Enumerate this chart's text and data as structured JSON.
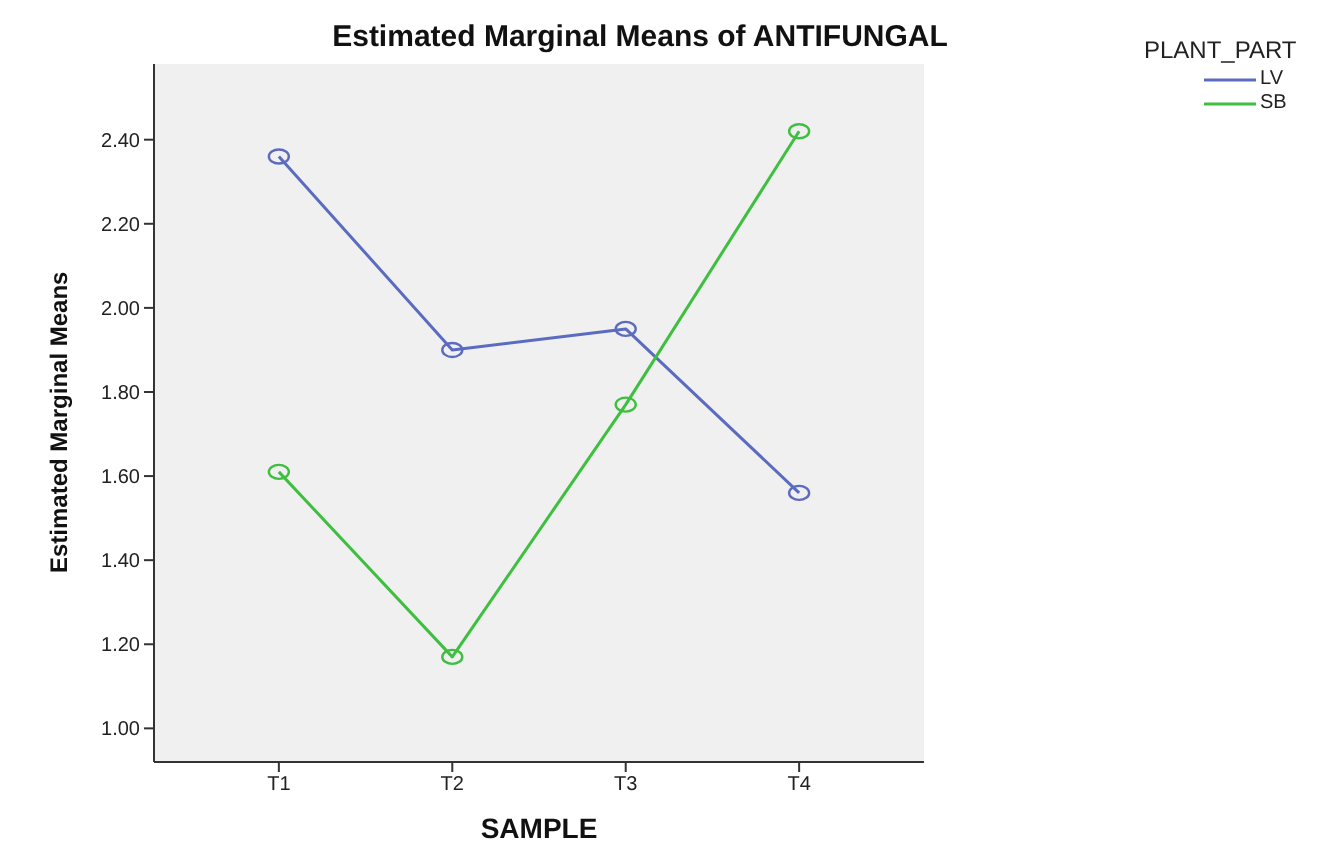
{
  "chart_data": {
    "type": "line",
    "title": "Estimated Marginal Means of ANTIFUNGAL",
    "xlabel": "SAMPLE",
    "ylabel": "Estimated Marginal Means",
    "legend_title": "PLANT_PART",
    "categories": [
      "T1",
      "T2",
      "T3",
      "T4"
    ],
    "series": [
      {
        "name": "LV",
        "color": "#5b6bc0",
        "values": [
          2.36,
          1.9,
          1.95,
          1.56
        ]
      },
      {
        "name": "SB",
        "color": "#3fbf3f",
        "values": [
          1.61,
          1.17,
          1.77,
          2.42
        ]
      }
    ],
    "ylim": [
      0.92,
      2.58
    ],
    "yticks": [
      {
        "value": 1.0,
        "label": "1.00"
      },
      {
        "value": 1.2,
        "label": "1.20"
      },
      {
        "value": 1.4,
        "label": "1.40"
      },
      {
        "value": 1.6,
        "label": "1.60"
      },
      {
        "value": 1.8,
        "label": "1.80"
      },
      {
        "value": 2.0,
        "label": "2.00"
      },
      {
        "value": 2.2,
        "label": "2.20"
      },
      {
        "value": 2.4,
        "label": "2.40"
      }
    ],
    "grid": false,
    "legend": "top right",
    "marker": "circle",
    "line_style": "solid"
  }
}
